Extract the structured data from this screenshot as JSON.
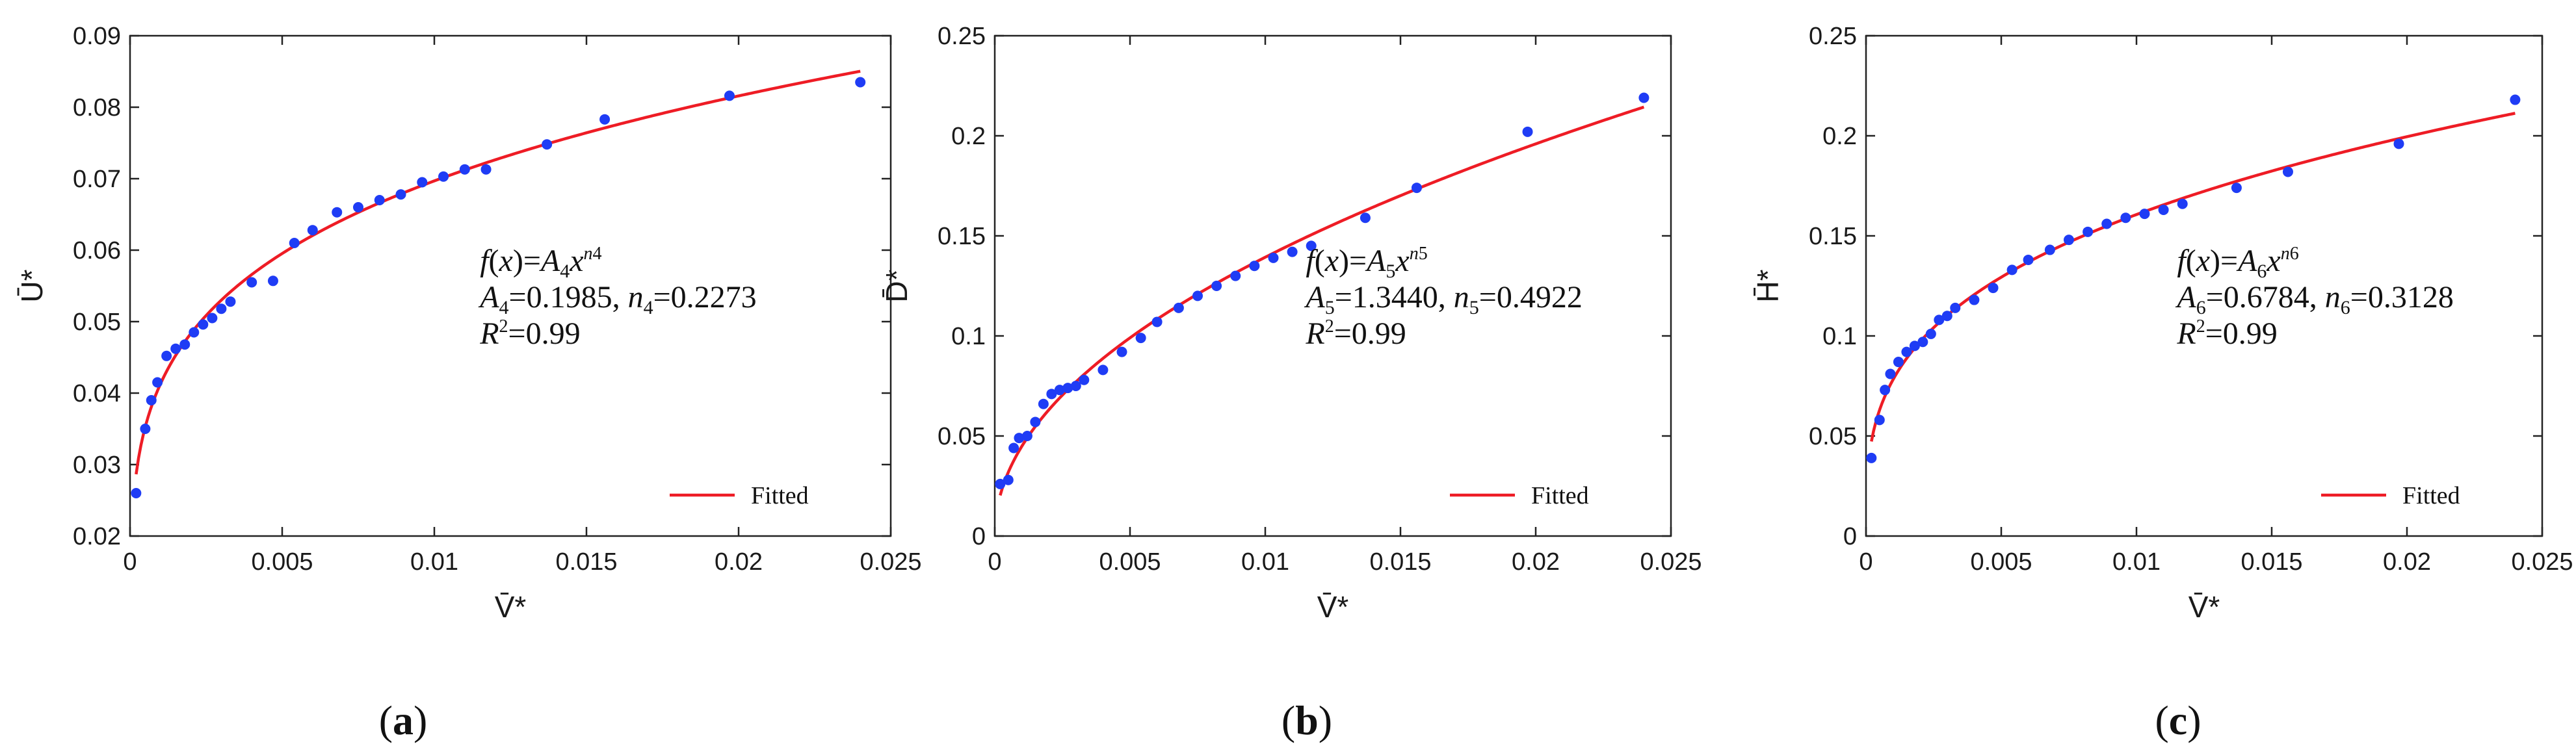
{
  "chart_data": [
    {
      "type": "scatter",
      "panel_label": "(a)",
      "panel_letter": "a",
      "xlabel": "V̄*",
      "ylabel": "Ū*",
      "xlim": [
        0,
        0.025
      ],
      "ylim": [
        0.02,
        0.09
      ],
      "xticks": [
        0,
        0.005,
        0.01,
        0.015,
        0.02,
        0.025
      ],
      "yticks": [
        0.02,
        0.03,
        0.04,
        0.05,
        0.06,
        0.07,
        0.08,
        0.09
      ],
      "xtick_labels": [
        "0",
        "0.005",
        "0.01",
        "0.015",
        "0.02",
        "0.025"
      ],
      "ytick_labels": [
        "0.02",
        "0.03",
        "0.04",
        "0.05",
        "0.06",
        "0.07",
        "0.08",
        "0.09"
      ],
      "grid": false,
      "legend": {
        "label": "Fitted",
        "position": "bottom-right"
      },
      "annotation": {
        "position": "center-right",
        "lines": [
          [
            {
              "t": "f",
              "i": true
            },
            {
              "t": "("
            },
            {
              "t": "x",
              "i": true
            },
            {
              "t": ")="
            },
            {
              "t": "A",
              "i": true
            },
            {
              "t": "4",
              "sub": true
            },
            {
              "t": "x",
              "i": true
            },
            {
              "t": "n",
              "sup": true,
              "i": true
            },
            {
              "t": "4",
              "sup": true
            }
          ],
          [
            {
              "t": "A",
              "i": true
            },
            {
              "t": "4",
              "sub": true
            },
            {
              "t": "=0.1985, "
            },
            {
              "t": "n",
              "i": true
            },
            {
              "t": "4",
              "sub": true
            },
            {
              "t": "=0.2273"
            }
          ],
          [
            {
              "t": "R",
              "i": true
            },
            {
              "t": "2",
              "sup": true
            },
            {
              "t": "=0.99"
            }
          ]
        ]
      },
      "fit": {
        "A": 0.1985,
        "n": 0.2273,
        "x_range": [
          0.0002,
          0.024
        ]
      },
      "points": {
        "x": [
          0.0002,
          0.0005,
          0.0007,
          0.0009,
          0.0012,
          0.0015,
          0.0018,
          0.0021,
          0.0024,
          0.0027,
          0.003,
          0.0033,
          0.004,
          0.0047,
          0.0054,
          0.006,
          0.0068,
          0.0075,
          0.0082,
          0.0089,
          0.0096,
          0.0103,
          0.011,
          0.0117,
          0.0137,
          0.0156,
          0.0197,
          0.024
        ],
        "y": [
          0.026,
          0.035,
          0.039,
          0.0415,
          0.0452,
          0.0462,
          0.0468,
          0.0485,
          0.0496,
          0.0505,
          0.0518,
          0.0528,
          0.0555,
          0.0557,
          0.061,
          0.0628,
          0.0653,
          0.066,
          0.067,
          0.0678,
          0.0695,
          0.0703,
          0.0713,
          0.0713,
          0.0748,
          0.0783,
          0.0816,
          0.0835
        ]
      }
    },
    {
      "type": "scatter",
      "panel_label": "(b)",
      "panel_letter": "b",
      "xlabel": "V̄*",
      "ylabel": "D̄*",
      "xlim": [
        0,
        0.025
      ],
      "ylim": [
        0,
        0.25
      ],
      "xticks": [
        0,
        0.005,
        0.01,
        0.015,
        0.02,
        0.025
      ],
      "yticks": [
        0,
        0.05,
        0.1,
        0.15,
        0.2,
        0.25
      ],
      "xtick_labels": [
        "0",
        "0.005",
        "0.01",
        "0.015",
        "0.02",
        "0.025"
      ],
      "ytick_labels": [
        "0",
        "0.05",
        "0.1",
        "0.15",
        "0.2",
        "0.25"
      ],
      "grid": false,
      "legend": {
        "label": "Fitted",
        "position": "bottom-right"
      },
      "annotation": {
        "position": "center-right",
        "lines": [
          [
            {
              "t": "f",
              "i": true
            },
            {
              "t": "("
            },
            {
              "t": "x",
              "i": true
            },
            {
              "t": ")="
            },
            {
              "t": "A",
              "i": true
            },
            {
              "t": "5",
              "sub": true
            },
            {
              "t": "x",
              "i": true
            },
            {
              "t": "n",
              "sup": true,
              "i": true
            },
            {
              "t": "5",
              "sup": true
            }
          ],
          [
            {
              "t": "A",
              "i": true
            },
            {
              "t": "5",
              "sub": true
            },
            {
              "t": "=1.3440, "
            },
            {
              "t": "n",
              "i": true
            },
            {
              "t": "5",
              "sub": true
            },
            {
              "t": "=0.4922"
            }
          ],
          [
            {
              "t": "R",
              "i": true
            },
            {
              "t": "2",
              "sup": true
            },
            {
              "t": "=0.99"
            }
          ]
        ]
      },
      "fit": {
        "A": 1.344,
        "n": 0.4922,
        "x_range": [
          0.0002,
          0.024
        ]
      },
      "points": {
        "x": [
          0.0002,
          0.0005,
          0.0007,
          0.0009,
          0.0012,
          0.0015,
          0.0018,
          0.0021,
          0.0024,
          0.0027,
          0.003,
          0.0033,
          0.004,
          0.0047,
          0.0054,
          0.006,
          0.0068,
          0.0075,
          0.0082,
          0.0089,
          0.0096,
          0.0103,
          0.011,
          0.0117,
          0.0137,
          0.0156,
          0.0197,
          0.024
        ],
        "y": [
          0.026,
          0.028,
          0.044,
          0.049,
          0.05,
          0.057,
          0.066,
          0.071,
          0.073,
          0.074,
          0.075,
          0.078,
          0.083,
          0.092,
          0.099,
          0.107,
          0.114,
          0.12,
          0.125,
          0.13,
          0.135,
          0.139,
          0.142,
          0.145,
          0.159,
          0.174,
          0.202,
          0.219
        ]
      }
    },
    {
      "type": "scatter",
      "panel_label": "(c)",
      "panel_letter": "c",
      "xlabel": "V̄*",
      "ylabel": "H̄*",
      "xlim": [
        0,
        0.025
      ],
      "ylim": [
        0,
        0.25
      ],
      "xticks": [
        0,
        0.005,
        0.01,
        0.015,
        0.02,
        0.025
      ],
      "yticks": [
        0,
        0.05,
        0.1,
        0.15,
        0.2,
        0.25
      ],
      "xtick_labels": [
        "0",
        "0.005",
        "0.01",
        "0.015",
        "0.02",
        "0.025"
      ],
      "ytick_labels": [
        "0",
        "0.05",
        "0.1",
        "0.15",
        "0.2",
        "0.25"
      ],
      "grid": false,
      "legend": {
        "label": "Fitted",
        "position": "bottom-right"
      },
      "annotation": {
        "position": "center-right",
        "lines": [
          [
            {
              "t": "f",
              "i": true
            },
            {
              "t": "("
            },
            {
              "t": "x",
              "i": true
            },
            {
              "t": ")="
            },
            {
              "t": "A",
              "i": true
            },
            {
              "t": "6",
              "sub": true
            },
            {
              "t": "x",
              "i": true
            },
            {
              "t": "n",
              "sup": true,
              "i": true
            },
            {
              "t": "6",
              "sup": true
            }
          ],
          [
            {
              "t": "A",
              "i": true
            },
            {
              "t": "6",
              "sub": true
            },
            {
              "t": "=0.6784, "
            },
            {
              "t": "n",
              "i": true
            },
            {
              "t": "6",
              "sub": true
            },
            {
              "t": "=0.3128"
            }
          ],
          [
            {
              "t": "R",
              "i": true
            },
            {
              "t": "2",
              "sup": true
            },
            {
              "t": "=0.99"
            }
          ]
        ]
      },
      "fit": {
        "A": 0.6784,
        "n": 0.3128,
        "x_range": [
          0.0002,
          0.024
        ]
      },
      "points": {
        "x": [
          0.0002,
          0.0005,
          0.0007,
          0.0009,
          0.0012,
          0.0015,
          0.0018,
          0.0021,
          0.0024,
          0.0027,
          0.003,
          0.0033,
          0.004,
          0.0047,
          0.0054,
          0.006,
          0.0068,
          0.0075,
          0.0082,
          0.0089,
          0.0096,
          0.0103,
          0.011,
          0.0117,
          0.0137,
          0.0156,
          0.0197,
          0.024
        ],
        "y": [
          0.039,
          0.058,
          0.073,
          0.081,
          0.087,
          0.092,
          0.095,
          0.097,
          0.101,
          0.108,
          0.11,
          0.114,
          0.118,
          0.124,
          0.133,
          0.138,
          0.143,
          0.148,
          0.152,
          0.156,
          0.159,
          0.161,
          0.163,
          0.166,
          0.174,
          0.182,
          0.196,
          0.218
        ]
      }
    }
  ],
  "colors": {
    "points": "#1f3cf5",
    "fit_line": "#ee1c25",
    "axes": "#222222",
    "text": "#111111"
  }
}
